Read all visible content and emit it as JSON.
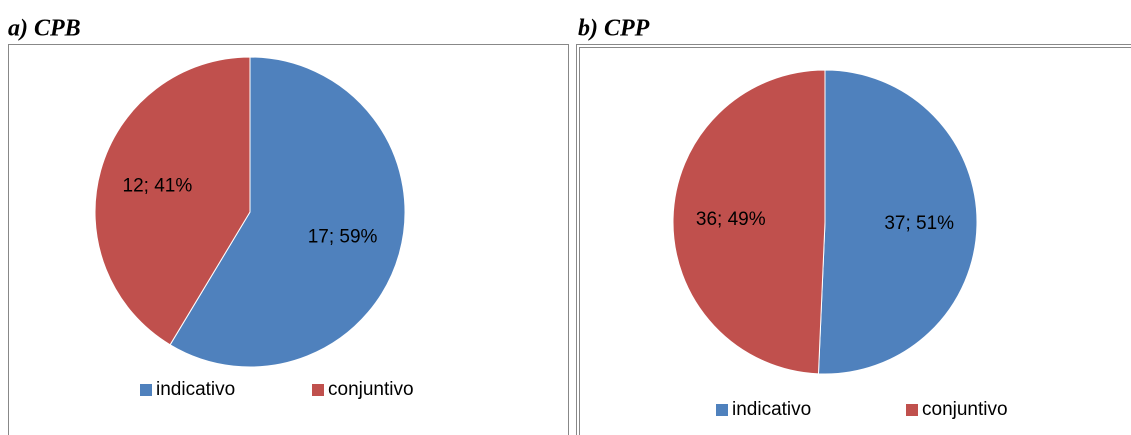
{
  "chart_data": [
    {
      "type": "pie",
      "title": "a)  CPB",
      "categories": [
        "indicativo",
        "conjuntivo"
      ],
      "values": [
        17,
        12
      ],
      "value_labels": [
        "17; 59%",
        "12; 41%"
      ],
      "colors": [
        "#4f81bd",
        "#c0504d"
      ],
      "legend": "bottom"
    },
    {
      "type": "pie",
      "title": "b) CPP",
      "categories": [
        "indicativo",
        "conjuntivo"
      ],
      "values": [
        37,
        36
      ],
      "value_labels": [
        "37; 51%",
        "36; 49%"
      ],
      "colors": [
        "#4f81bd",
        "#c0504d"
      ],
      "legend": "bottom"
    }
  ]
}
